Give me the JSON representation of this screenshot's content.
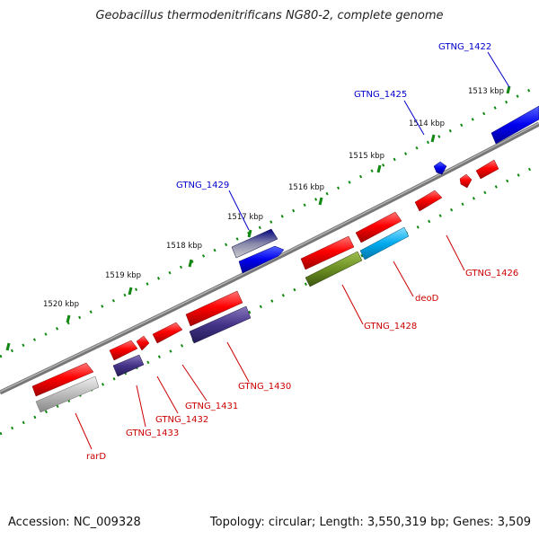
{
  "title": "Geobacillus thermodenitrificans NG80-2, complete genome",
  "footer": {
    "accession": "Accession: NC_009328",
    "summary": "Topology: circular; Length: 3,550,319 bp; Genes: 3,509"
  },
  "ticks": [
    "1513 kbp",
    "1514 kbp",
    "1515 kbp",
    "1516 kbp",
    "1517 kbp",
    "1518 kbp",
    "1519 kbp",
    "1520 kbp"
  ],
  "gene_labels": {
    "forward": [
      "GTNG_1422",
      "GTNG_1425",
      "GTNG_1429"
    ],
    "reverse": [
      "GTNG_1426",
      "deoD",
      "GTNG_1428",
      "GTNG_1430",
      "GTNG_1431",
      "GTNG_1432",
      "GTNG_1433",
      "rarD"
    ]
  },
  "colors": {
    "forward_label": "#0000cc",
    "reverse_label": "#cc0000",
    "backbone": "#808080",
    "ruler": "#118811",
    "gene_red": "#ff0000",
    "gene_blue": "#0000ee",
    "gene_navy": "#000080",
    "gene_purple": "#443388",
    "gene_olive": "#6b8e23",
    "gene_cyan": "#00aaee",
    "gene_gray": "#bbbbbb"
  }
}
